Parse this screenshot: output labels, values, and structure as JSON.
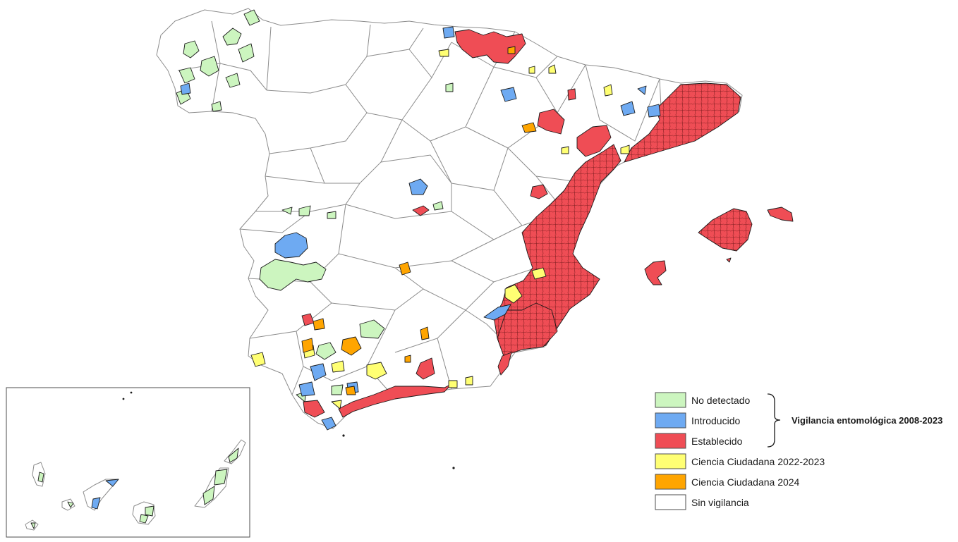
{
  "legend": {
    "group_label": "Vigilancia entomológica 2008-2023",
    "items": [
      {
        "label": "No detectado",
        "color": "#ccf5bf"
      },
      {
        "label": "Introducido",
        "color": "#6eaaf2"
      },
      {
        "label": "Establecido",
        "color": "#ef4d55"
      },
      {
        "label": "Ciencia Ciudadana 2022-2023",
        "color": "#ffff73"
      },
      {
        "label": "Ciencia Ciudadana 2024",
        "color": "#ffa500"
      },
      {
        "label": "Sin vigilancia",
        "color": "#ffffff"
      }
    ]
  },
  "colors": {
    "province_border": "#8c8c8c",
    "zone_border": "#1a1a1a"
  }
}
